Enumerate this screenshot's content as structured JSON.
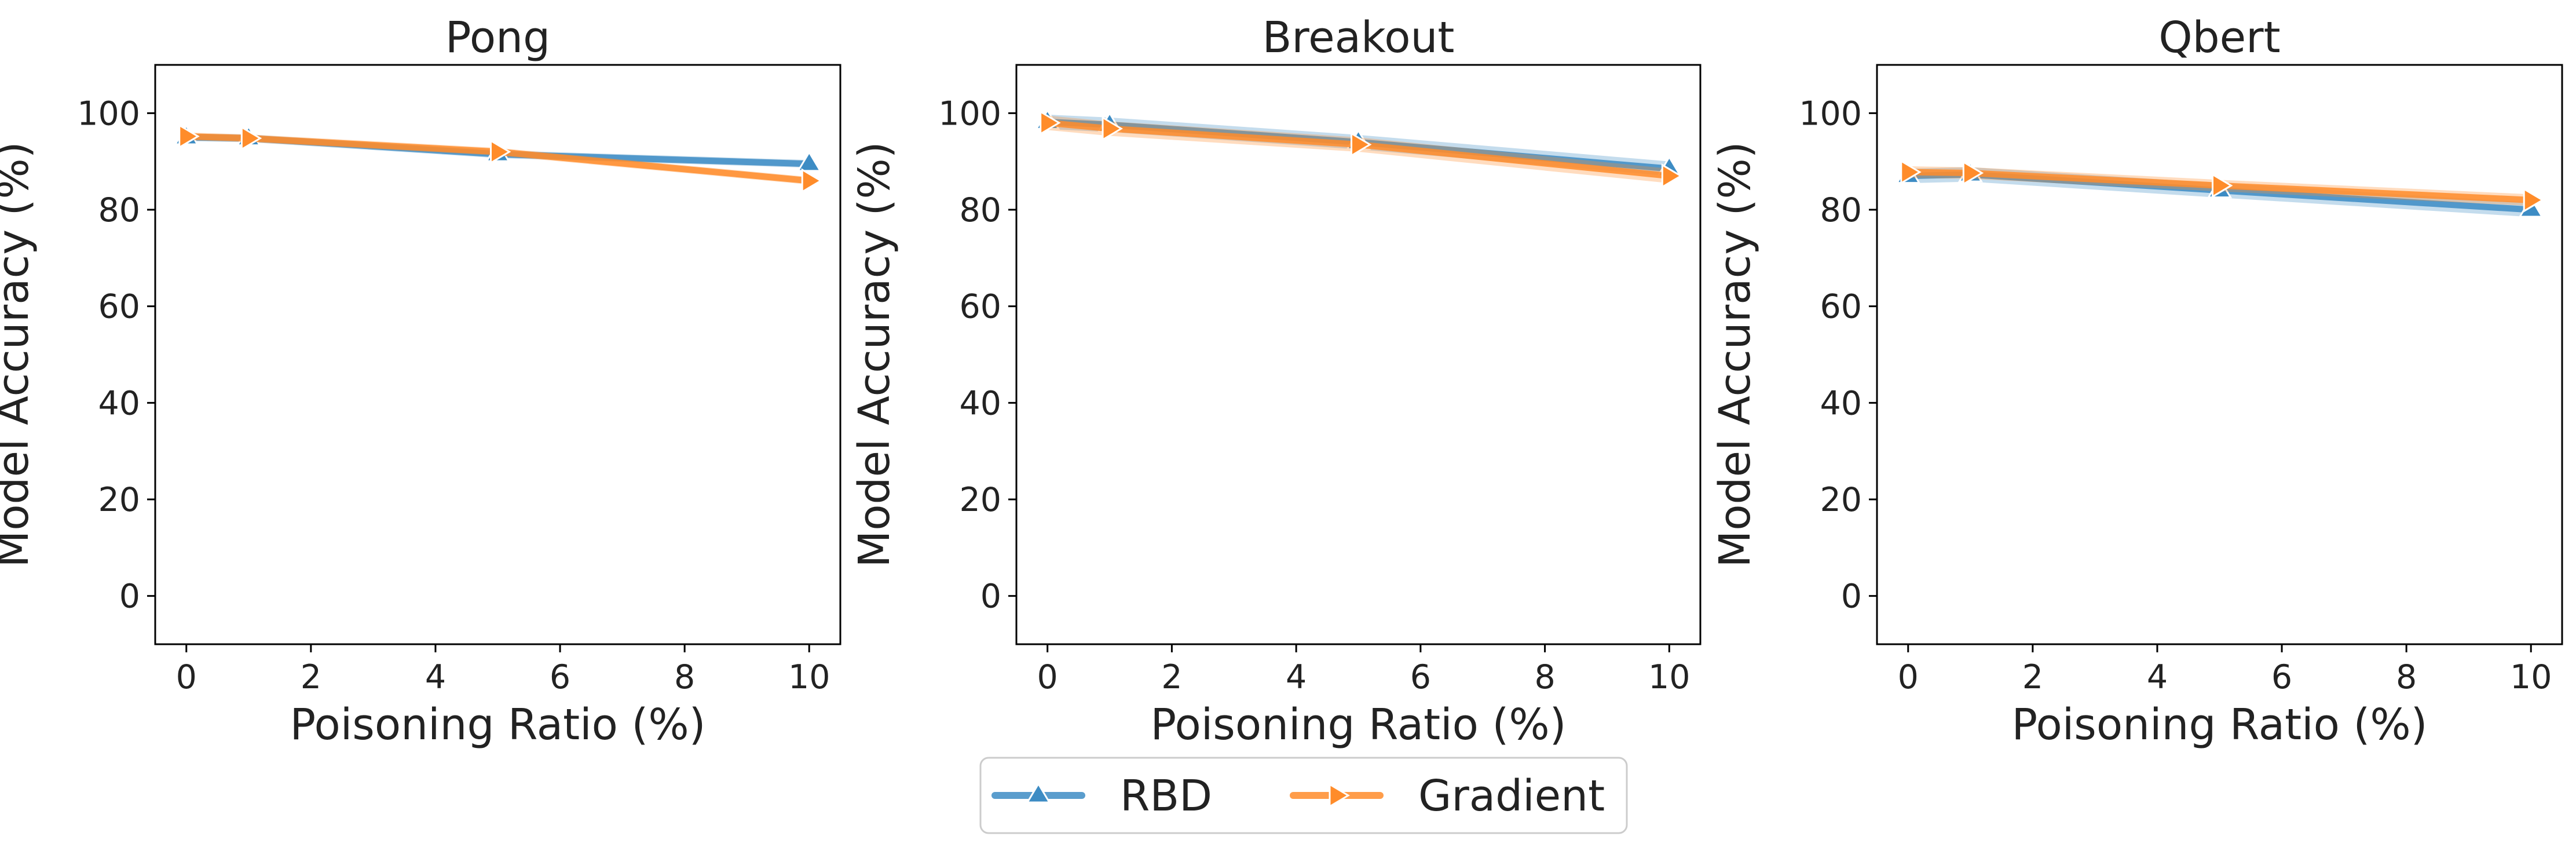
{
  "figure": {
    "legend": {
      "placement": "bottom-center",
      "entries": [
        {
          "label": "RBD",
          "color": "#3d8cc4",
          "marker": "triangle-up"
        },
        {
          "label": "Gradient",
          "color": "#ff8c2a",
          "marker": "triangle-right"
        }
      ]
    }
  },
  "chart_data": [
    {
      "type": "line",
      "title": "Pong",
      "xlabel": "Poisoning Ratio (%)",
      "ylabel": "Model Accuracy (%)",
      "xlim": [
        -0.5,
        10.5
      ],
      "ylim": [
        -10,
        110
      ],
      "xticks": [
        0,
        2,
        4,
        6,
        8,
        10
      ],
      "yticks": [
        0,
        20,
        40,
        60,
        80,
        100
      ],
      "grid": false,
      "x": [
        0,
        1,
        5,
        10
      ],
      "series": [
        {
          "name": "RBD",
          "values": [
            95.0,
            94.8,
            91.5,
            89.5
          ],
          "band": 0.8
        },
        {
          "name": "Gradient",
          "values": [
            95.2,
            94.8,
            92.0,
            86.0
          ],
          "band": 0.8
        }
      ]
    },
    {
      "type": "line",
      "title": "Breakout",
      "xlabel": "Poisoning Ratio (%)",
      "ylabel": "Model Accuracy (%)",
      "xlim": [
        -0.5,
        10.5
      ],
      "ylim": [
        -10,
        110
      ],
      "xticks": [
        0,
        2,
        4,
        6,
        8,
        10
      ],
      "yticks": [
        0,
        20,
        40,
        60,
        80,
        100
      ],
      "grid": false,
      "x": [
        0,
        1,
        5,
        10
      ],
      "series": [
        {
          "name": "RBD",
          "values": [
            98.2,
            97.6,
            94.0,
            88.5
          ],
          "band": 1.5
        },
        {
          "name": "Gradient",
          "values": [
            98.0,
            96.8,
            93.5,
            87.0
          ],
          "band": 1.5
        }
      ]
    },
    {
      "type": "line",
      "title": "Qbert",
      "xlabel": "Poisoning Ratio (%)",
      "ylabel": "Model Accuracy (%)",
      "xlim": [
        -0.5,
        10.5
      ],
      "ylim": [
        -10,
        110
      ],
      "xticks": [
        0,
        2,
        4,
        6,
        8,
        10
      ],
      "yticks": [
        0,
        20,
        40,
        60,
        80,
        100
      ],
      "grid": false,
      "x": [
        0,
        1,
        5,
        10
      ],
      "series": [
        {
          "name": "RBD",
          "values": [
            87.0,
            87.3,
            84.0,
            80.0
          ],
          "band": 1.5
        },
        {
          "name": "Gradient",
          "values": [
            87.8,
            87.6,
            85.0,
            82.0
          ],
          "band": 1.2
        }
      ]
    }
  ]
}
